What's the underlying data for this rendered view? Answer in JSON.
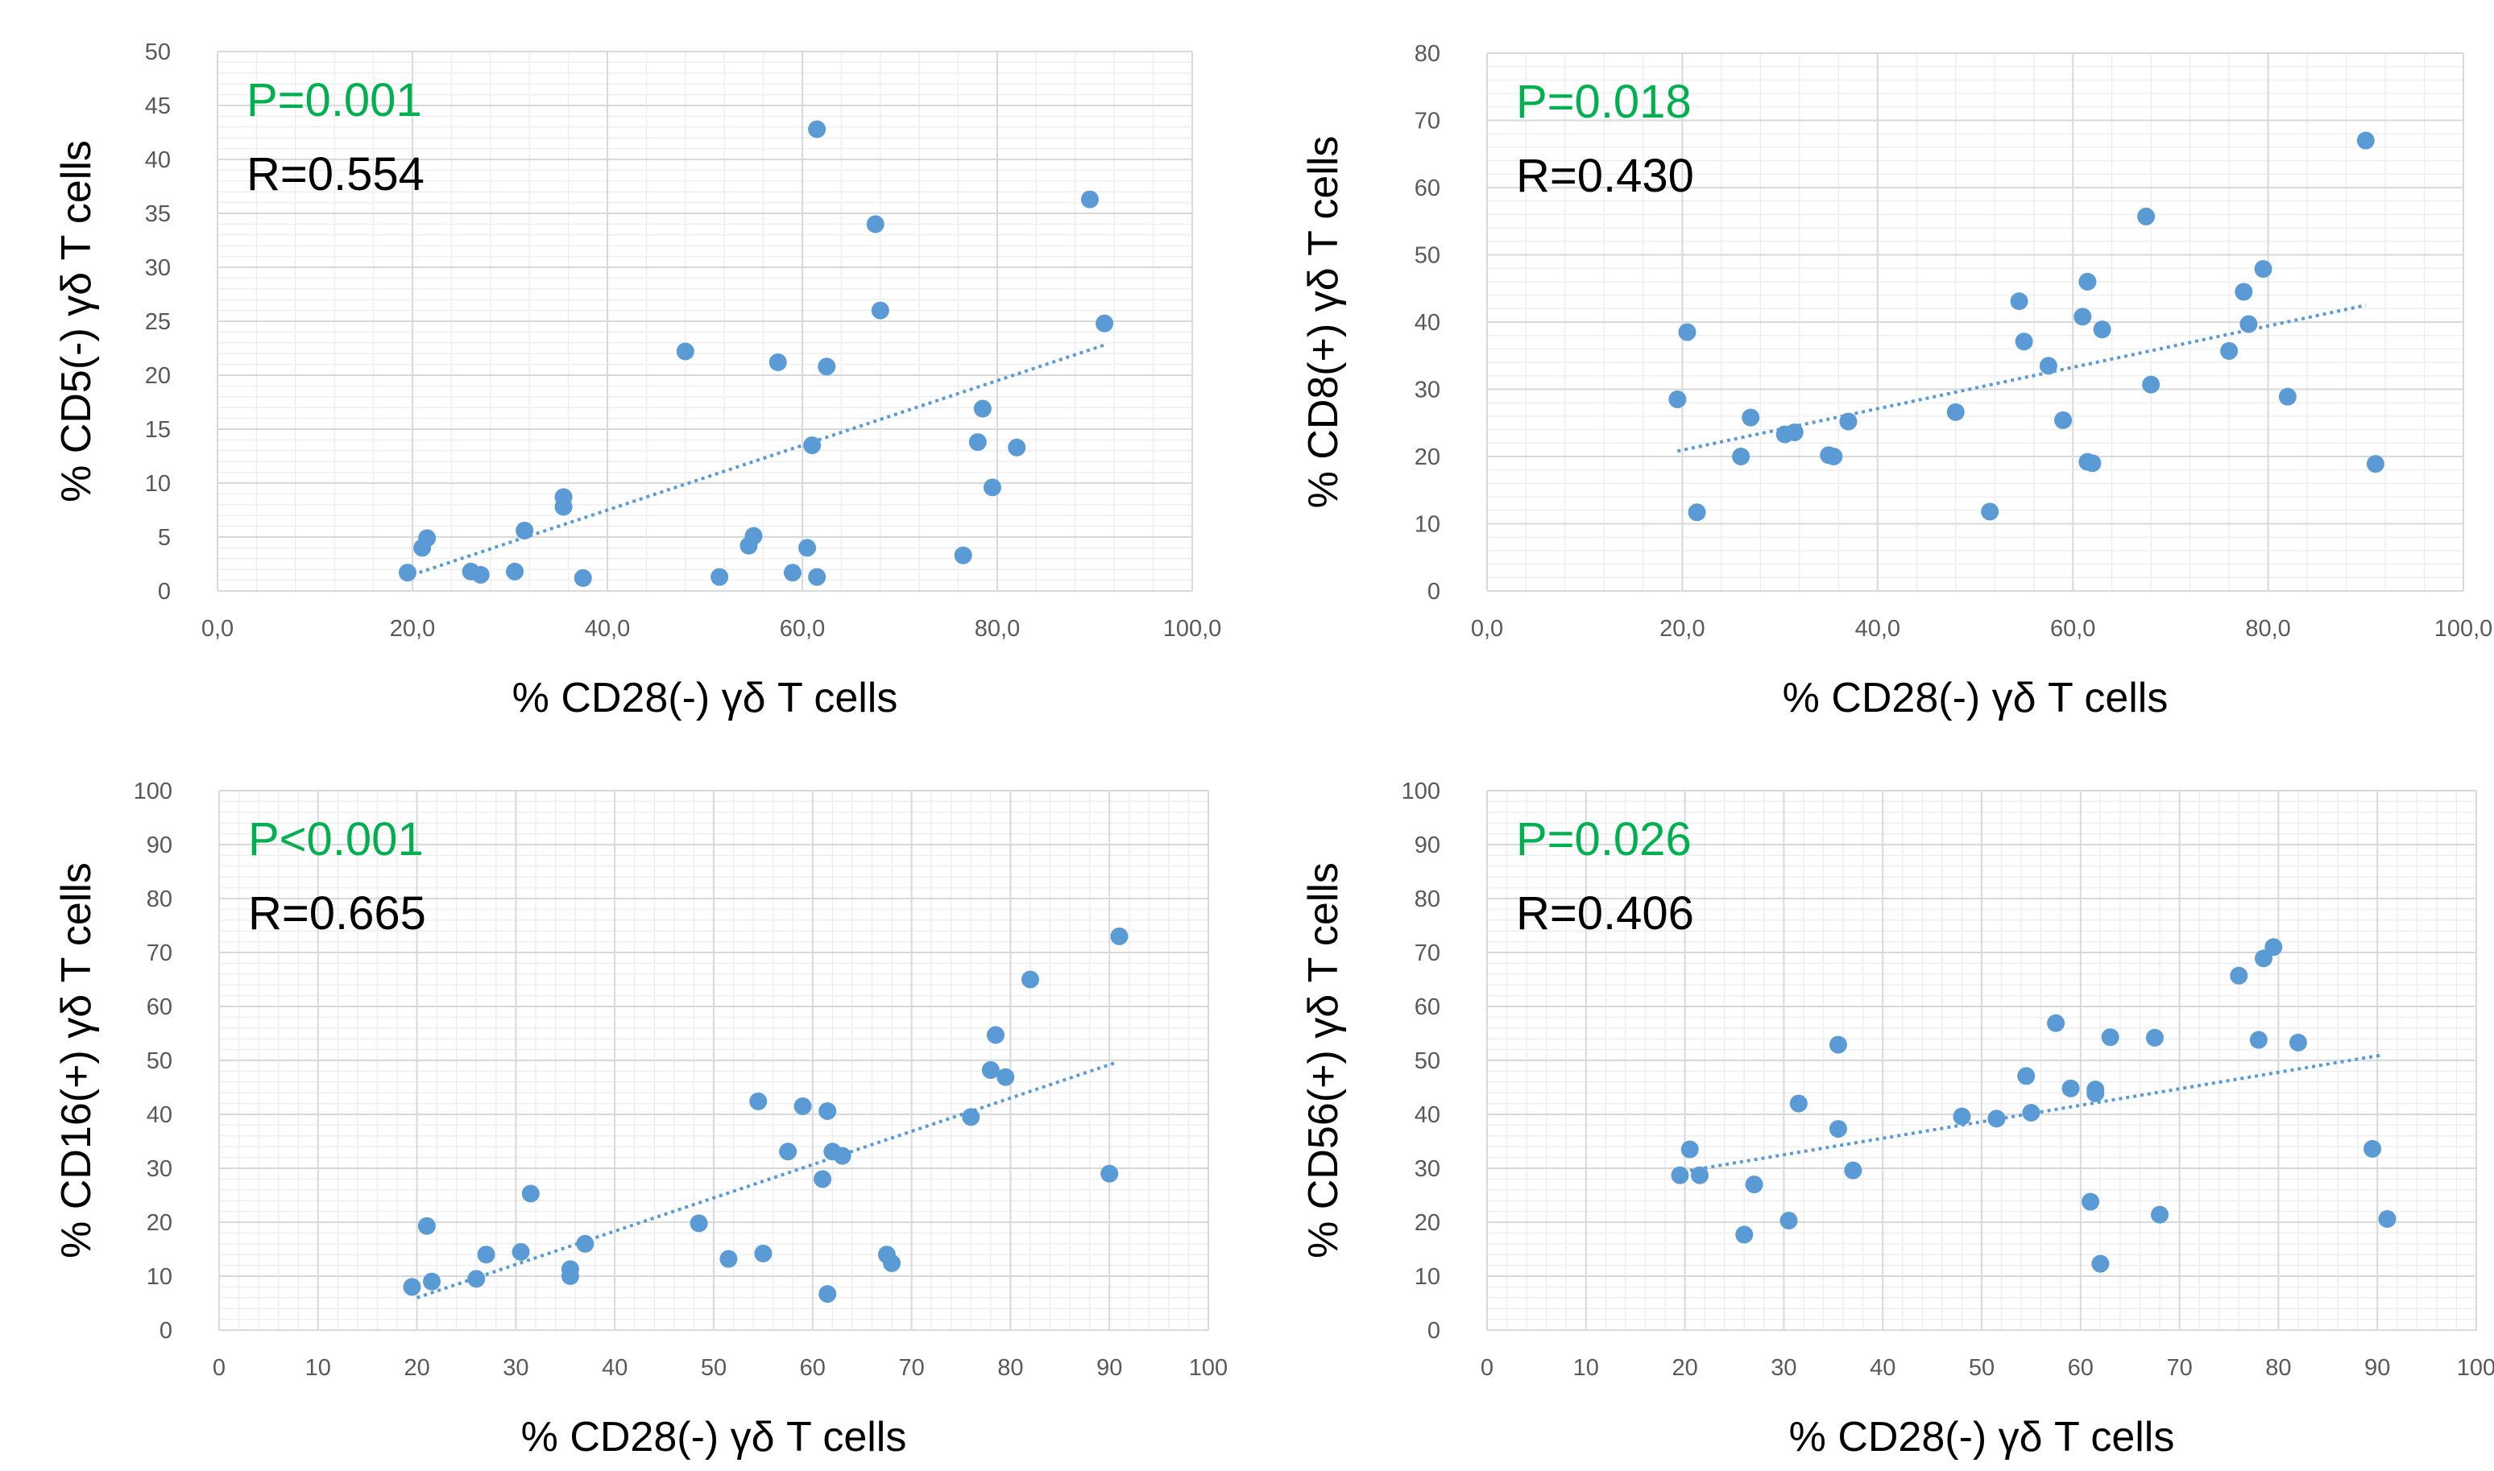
{
  "colors": {
    "marker": "#5b9bd5",
    "trendline": "#5b9bd5",
    "p_value": "#00b050",
    "r_value": "#000000",
    "grid_major": "#d9d9d9",
    "grid_minor": "#efefef"
  },
  "chart_data": [
    {
      "type": "scatter",
      "xlabel": "% CD28(-) γδ T cells",
      "ylabel": "% CD5(-) γδ T cells",
      "p_text": "P=0.001",
      "r_text": "R=0.554",
      "xlim": [
        0,
        100
      ],
      "ylim": [
        0,
        50
      ],
      "xticks": [
        0,
        20,
        40,
        60,
        80,
        100
      ],
      "xtick_labels": [
        "0,0",
        "20,0",
        "40,0",
        "60,0",
        "80,0",
        "100,0"
      ],
      "yticks": [
        0,
        5,
        10,
        15,
        20,
        25,
        30,
        35,
        40,
        45,
        50
      ],
      "ytick_labels": [
        "0",
        "5",
        "10",
        "15",
        "20",
        "25",
        "30",
        "35",
        "40",
        "45",
        "50"
      ],
      "grid": true,
      "trendline": {
        "x": [
          20,
          91
        ],
        "y": [
          1.5,
          22.8
        ]
      },
      "x": [
        19.5,
        21,
        21.5,
        26,
        27,
        30.5,
        31.5,
        35.5,
        35.5,
        37.5,
        48,
        51.5,
        54.5,
        55,
        57.5,
        59,
        60.5,
        61,
        61.5,
        61.5,
        62.5,
        67.5,
        68,
        76.5,
        78,
        78.5,
        79.5,
        82,
        89.5,
        91
      ],
      "y": [
        1.7,
        4,
        4.9,
        1.8,
        1.5,
        1.8,
        5.6,
        7.8,
        8.7,
        1.2,
        22.2,
        1.3,
        4.2,
        5.1,
        21.2,
        1.7,
        4,
        13.5,
        1.3,
        42.8,
        20.8,
        34,
        26,
        3.3,
        13.8,
        16.9,
        9.6,
        13.3,
        36.3,
        24.8
      ]
    },
    {
      "type": "scatter",
      "xlabel": "% CD28(-) γδ T cells",
      "ylabel": "% CD8(+) γδ T cells",
      "p_text": "P=0.018",
      "r_text": "R=0.430",
      "xlim": [
        0,
        100
      ],
      "ylim": [
        0,
        80
      ],
      "xticks": [
        0,
        20,
        40,
        60,
        80,
        100
      ],
      "xtick_labels": [
        "0,0",
        "20,0",
        "40,0",
        "60,0",
        "80,0",
        "100,0"
      ],
      "yticks": [
        0,
        10,
        20,
        30,
        40,
        50,
        60,
        70,
        80
      ],
      "ytick_labels": [
        "0",
        "10",
        "20",
        "30",
        "40",
        "50",
        "60",
        "70",
        "80"
      ],
      "grid": true,
      "trendline": {
        "x": [
          19.5,
          90
        ],
        "y": [
          20.8,
          42.5
        ]
      },
      "x": [
        19.5,
        20.5,
        21.5,
        26,
        27,
        30.5,
        31.5,
        35,
        35.5,
        37,
        48,
        51.5,
        54.5,
        55,
        57.5,
        59,
        61,
        61.5,
        61.5,
        62,
        63,
        67.5,
        68,
        76,
        77.5,
        78,
        79.5,
        82,
        90,
        91
      ],
      "y": [
        28.5,
        38.5,
        11.7,
        20,
        25.8,
        23.3,
        23.6,
        20.2,
        20,
        25.2,
        26.6,
        11.8,
        43.1,
        37.1,
        33.5,
        25.4,
        40.8,
        46,
        19.2,
        19,
        38.9,
        55.7,
        30.7,
        35.7,
        44.5,
        39.7,
        47.9,
        28.9,
        67,
        18.9
      ]
    },
    {
      "type": "scatter",
      "xlabel": "% CD28(-) γδ T cells",
      "ylabel": "% CD16(+) γδ T cells",
      "p_text": "P<0.001",
      "r_text": "R=0.665",
      "xlim": [
        0,
        100
      ],
      "ylim": [
        0,
        100
      ],
      "xticks": [
        0,
        10,
        20,
        30,
        40,
        50,
        60,
        70,
        80,
        90,
        100
      ],
      "xtick_labels": [
        "0",
        "10",
        "20",
        "30",
        "40",
        "50",
        "60",
        "70",
        "80",
        "90",
        "100"
      ],
      "yticks": [
        0,
        10,
        20,
        30,
        40,
        50,
        60,
        70,
        80,
        90,
        100
      ],
      "ytick_labels": [
        "0",
        "10",
        "20",
        "30",
        "40",
        "50",
        "60",
        "70",
        "80",
        "90",
        "100"
      ],
      "grid": true,
      "trendline": {
        "x": [
          20,
          90.5
        ],
        "y": [
          6,
          49.5
        ]
      },
      "x": [
        19.5,
        21,
        21.5,
        26,
        27,
        30.5,
        31.5,
        35.5,
        35.5,
        37,
        48.5,
        51.5,
        54.5,
        55,
        57.5,
        59,
        61,
        61.5,
        61.5,
        62,
        63,
        67.5,
        68,
        76,
        78,
        78.5,
        79.5,
        82,
        90,
        91
      ],
      "y": [
        8,
        19.3,
        9,
        9.5,
        14,
        14.5,
        25.3,
        11.3,
        10,
        16,
        19.8,
        13.2,
        42.4,
        14.2,
        33.1,
        41.5,
        28,
        40.6,
        6.7,
        33.1,
        32.3,
        14,
        12.4,
        39.5,
        48.2,
        54.7,
        46.9,
        65,
        29,
        73
      ]
    },
    {
      "type": "scatter",
      "xlabel": "% CD28(-) γδ T cells",
      "ylabel": "% CD56(+) γδ T cells",
      "p_text": "P=0.026",
      "r_text": "R=0.406",
      "xlim": [
        0,
        100
      ],
      "ylim": [
        0,
        100
      ],
      "xticks": [
        0,
        10,
        20,
        30,
        40,
        50,
        60,
        70,
        80,
        90,
        100
      ],
      "xtick_labels": [
        "0",
        "10",
        "20",
        "30",
        "40",
        "50",
        "60",
        "70",
        "80",
        "90",
        "100"
      ],
      "yticks": [
        0,
        10,
        20,
        30,
        40,
        50,
        60,
        70,
        80,
        90,
        100
      ],
      "ytick_labels": [
        "0",
        "10",
        "20",
        "30",
        "40",
        "50",
        "60",
        "70",
        "80",
        "90",
        "100"
      ],
      "grid": true,
      "trendline": {
        "x": [
          20.5,
          90.5
        ],
        "y": [
          29.6,
          51
        ]
      },
      "x": [
        19.5,
        20.5,
        21.5,
        26,
        27,
        30.5,
        31.5,
        35.5,
        35.5,
        37,
        48,
        51.5,
        54.5,
        55,
        57.5,
        59,
        61,
        61.5,
        61.5,
        62,
        63,
        67.5,
        68,
        76,
        78,
        78.5,
        79.5,
        82,
        89.5,
        91
      ],
      "y": [
        28.7,
        33.5,
        28.7,
        17.7,
        27,
        20.3,
        42,
        52.9,
        37.3,
        29.6,
        39.6,
        39.2,
        47.1,
        40.3,
        56.9,
        44.8,
        23.8,
        44.6,
        43.9,
        12.3,
        54.3,
        54.2,
        21.4,
        65.7,
        53.8,
        68.9,
        71,
        53.3,
        33.6,
        20.6
      ]
    }
  ]
}
